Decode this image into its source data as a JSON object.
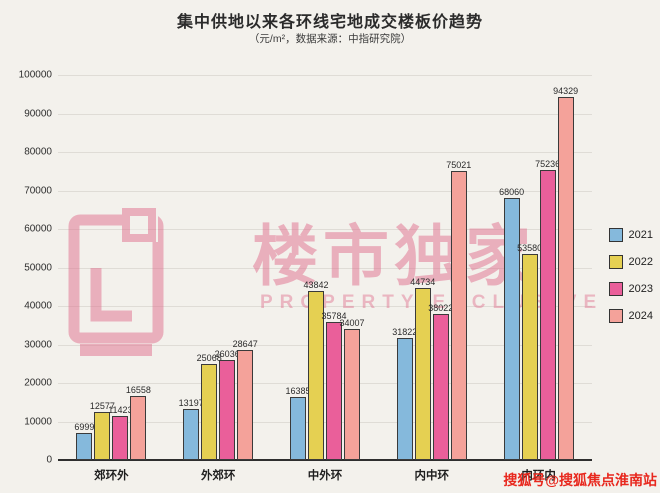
{
  "title": "集中供地以来各环线宅地成交楼板价趋势",
  "subtitle": "（元/m²，数据来源：中指研究院）",
  "watermark": {
    "logo": "loushi-logo",
    "text_cn": "楼市独家",
    "text_en": "PROPERTY EXCLUSIVE",
    "color": "#e0708e"
  },
  "footer": {
    "text": "搜狐号@搜狐焦点淮南站",
    "color": "#e8281e"
  },
  "chart_data": {
    "type": "bar",
    "title": "集中供地以来各环线宅地成交楼板价趋势",
    "subtitle": "（元/m²，数据来源：中指研究院）",
    "categories": [
      "郊环外",
      "外郊环",
      "中外环",
      "内中环",
      "内环内"
    ],
    "series": [
      {
        "name": "2021",
        "color": "#85b9dc",
        "values": [
          6999,
          13197,
          16385,
          31822,
          68060
        ]
      },
      {
        "name": "2022",
        "color": "#e5d052",
        "values": [
          12577,
          25068,
          43842,
          44734,
          53580
        ]
      },
      {
        "name": "2023",
        "color": "#ea5f9a",
        "values": [
          11423,
          26036,
          35784,
          38022,
          75236
        ]
      },
      {
        "name": "2024",
        "color": "#f4a29a",
        "values": [
          16558,
          28647,
          34007,
          75021,
          94329
        ]
      }
    ],
    "xlabel": "",
    "ylabel": "",
    "ylim": [
      0,
      100000
    ],
    "ytick_step": 10000,
    "grid": true,
    "legend_position": "right"
  }
}
